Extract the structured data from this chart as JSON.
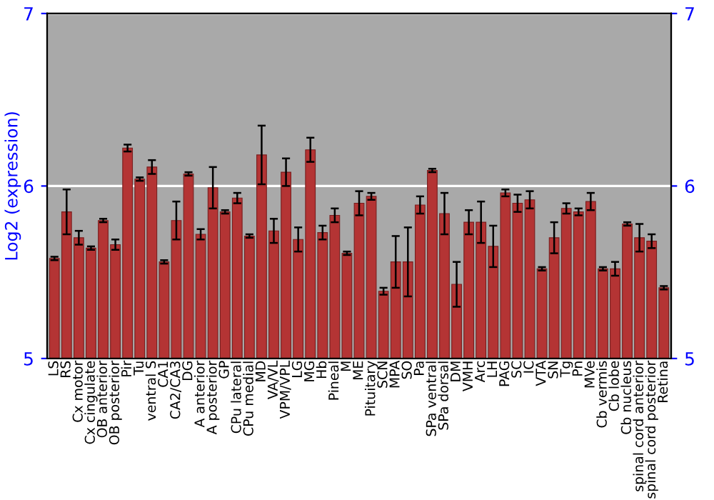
{
  "chart_data": {
    "type": "bar",
    "ylabel": "Log2 (expression)",
    "categories": [
      "LS",
      "RS",
      "Cx motor",
      "Cx cingulate",
      "OB anterior",
      "OB posterior",
      "Pir",
      "Tu",
      "ventral S",
      "CA1",
      "CA2/CA3",
      "DG",
      "A anterior",
      "A posterior",
      "GP",
      "CPu lateral",
      "CPu medial",
      "MD",
      "VA/VL",
      "VPM/VPL",
      "LG",
      "MG",
      "Hb",
      "Pineal",
      "M",
      "ME",
      "Pituitary",
      "SCN",
      "MPA",
      "SO",
      "Pa",
      "SPa ventral",
      "SPa dorsal",
      "DM",
      "VMH",
      "Arc",
      "LH",
      "PAG",
      "SC",
      "IC",
      "VTA",
      "SN",
      "Tg",
      "Pn",
      "MVe",
      "Cb vermis",
      "Cb lobe",
      "Cb nucleus",
      "spinal cord anterior",
      "spinal cord posterior",
      "Retina"
    ],
    "values": [
      5.58,
      5.85,
      5.7,
      5.64,
      5.8,
      5.66,
      6.22,
      6.04,
      6.11,
      5.56,
      5.8,
      6.07,
      5.72,
      5.99,
      5.85,
      5.93,
      5.71,
      6.18,
      5.74,
      6.08,
      5.69,
      6.21,
      5.73,
      5.83,
      5.61,
      5.9,
      5.94,
      5.39,
      5.56,
      5.56,
      5.89,
      6.09,
      5.84,
      5.43,
      5.79,
      5.79,
      5.65,
      5.96,
      5.9,
      5.92,
      5.52,
      5.7,
      5.87,
      5.85,
      5.91,
      5.52,
      5.52,
      5.78,
      5.7,
      5.68,
      5.41
    ],
    "errors": [
      0.01,
      0.13,
      0.04,
      0.01,
      0.01,
      0.03,
      0.02,
      0.01,
      0.04,
      0.01,
      0.11,
      0.01,
      0.03,
      0.12,
      0.01,
      0.03,
      0.01,
      0.17,
      0.07,
      0.08,
      0.07,
      0.07,
      0.04,
      0.04,
      0.01,
      0.07,
      0.02,
      0.02,
      0.15,
      0.2,
      0.05,
      0.01,
      0.12,
      0.13,
      0.07,
      0.12,
      0.12,
      0.02,
      0.05,
      0.05,
      0.01,
      0.09,
      0.03,
      0.02,
      0.05,
      0.01,
      0.04,
      0.01,
      0.08,
      0.04,
      0.01
    ],
    "color": "#b43434",
    "ylim": [
      5,
      7
    ],
    "yticks": [
      5,
      6,
      7
    ],
    "y2lim": [
      5,
      7
    ],
    "y2ticks": [
      5,
      6,
      7
    ],
    "grid": "y",
    "legend": false
  }
}
